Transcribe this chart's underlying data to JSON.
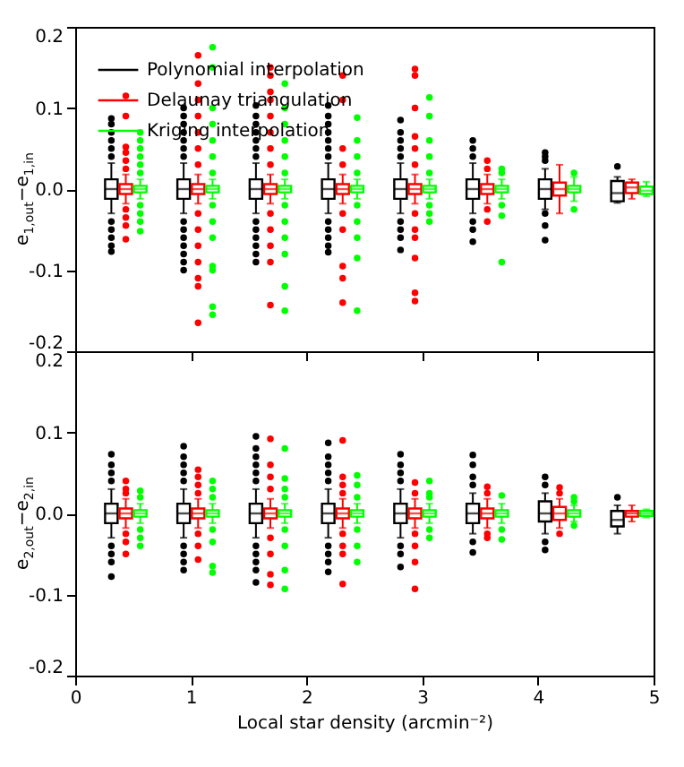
{
  "chart_data": [
    {
      "type": "box",
      "ylabel": "e$_{1,out}$−e$_{1,in}$",
      "xlim": [
        0,
        5
      ],
      "xticks": [
        0,
        1,
        2,
        3,
        4,
        5
      ],
      "ylim": [
        -0.2,
        0.2
      ],
      "yticks": [
        {
          "value": -0.2,
          "label": "-0.2"
        },
        {
          "value": -0.1,
          "label": "-0.1"
        },
        {
          "value": 0,
          "label": "0.0"
        },
        {
          "value": 0.1,
          "label": "0.1"
        },
        {
          "value": 0.2,
          "label": "0.2"
        }
      ],
      "tick_labels": "y",
      "legend": "top left",
      "marker": "circle",
      "x": [
        0.4375,
        1.0625,
        1.6875,
        2.3125,
        2.9375,
        3.5625,
        4.1875,
        4.8125
      ],
      "series": [
        {
          "name": "Polynomial interpolation",
          "color": "#000000",
          "boxes": [
            {
              "low": -0.03,
              "q1": -0.012,
              "median": 0,
              "q3": 0.012,
              "high": 0.032,
              "outliers": [
                0.04,
                0.05,
                0.06,
                0.07,
                0.08,
                0.087,
                -0.04,
                -0.05,
                -0.06,
                -0.07,
                -0.077
              ]
            },
            {
              "low": -0.03,
              "q1": -0.012,
              "median": 0,
              "q3": 0.012,
              "high": 0.032,
              "outliers": [
                0.04,
                0.05,
                0.06,
                0.07,
                0.08,
                0.09,
                0.1,
                -0.04,
                -0.05,
                -0.06,
                -0.07,
                -0.08,
                -0.09,
                -0.1
              ]
            },
            {
              "low": -0.03,
              "q1": -0.012,
              "median": 0,
              "q3": 0.012,
              "high": 0.032,
              "outliers": [
                0.04,
                0.05,
                0.06,
                0.07,
                0.08,
                0.09,
                0.103,
                -0.04,
                -0.05,
                -0.06,
                -0.07,
                -0.08,
                -0.09
              ]
            },
            {
              "low": -0.03,
              "q1": -0.012,
              "median": 0,
              "q3": 0.012,
              "high": 0.032,
              "outliers": [
                0.04,
                0.05,
                0.06,
                0.07,
                0.08,
                0.09,
                0.103,
                -0.04,
                -0.05,
                -0.06,
                -0.07,
                -0.078
              ]
            },
            {
              "low": -0.03,
              "q1": -0.012,
              "median": 0,
              "q3": 0.012,
              "high": 0.032,
              "outliers": [
                0.04,
                0.05,
                0.06,
                0.07,
                0.085,
                -0.04,
                -0.05,
                -0.06,
                -0.075
              ]
            },
            {
              "low": -0.03,
              "q1": -0.012,
              "median": 0,
              "q3": 0.012,
              "high": 0.032,
              "outliers": [
                0.04,
                0.05,
                0.06,
                -0.04,
                -0.05,
                -0.065
              ]
            },
            {
              "low": -0.025,
              "q1": -0.012,
              "median": 0,
              "q3": 0.012,
              "high": 0.025,
              "outliers": [
                0.035,
                0.04,
                0.045,
                -0.03,
                -0.045,
                -0.063
              ]
            },
            {
              "low": -0.017,
              "q1": -0.015,
              "median": -0.005,
              "q3": 0.01,
              "high": 0.015,
              "outliers": [
                0.028
              ]
            }
          ]
        },
        {
          "name": "Delaunay triangulation",
          "color": "#ff0000",
          "boxes": [
            {
              "low": -0.018,
              "q1": -0.006,
              "median": 0,
              "q3": 0.006,
              "high": 0.018,
              "outliers": [
                0.025,
                0.035,
                0.045,
                0.052,
                0.09,
                0.115,
                -0.025,
                -0.035,
                -0.045,
                -0.062
              ]
            },
            {
              "low": -0.018,
              "q1": -0.006,
              "median": 0,
              "q3": 0.006,
              "high": 0.018,
              "outliers": [
                0.03,
                0.05,
                0.07,
                0.09,
                0.11,
                0.13,
                0.165,
                -0.03,
                -0.05,
                -0.07,
                -0.09,
                -0.11,
                -0.12,
                -0.165
              ]
            },
            {
              "low": -0.018,
              "q1": -0.006,
              "median": 0,
              "q3": 0.006,
              "high": 0.018,
              "outliers": [
                0.03,
                0.05,
                0.07,
                0.09,
                0.11,
                0.12,
                0.14,
                0.15,
                -0.03,
                -0.05,
                -0.07,
                -0.09,
                -0.143
              ]
            },
            {
              "low": -0.018,
              "q1": -0.006,
              "median": 0,
              "q3": 0.006,
              "high": 0.018,
              "outliers": [
                0.03,
                0.05,
                0.11,
                0.14,
                -0.03,
                -0.05,
                -0.095,
                -0.11,
                -0.14
              ]
            },
            {
              "low": -0.018,
              "q1": -0.006,
              "median": 0,
              "q3": 0.006,
              "high": 0.018,
              "outliers": [
                0.03,
                0.05,
                0.065,
                0.1,
                0.14,
                0.148,
                -0.03,
                -0.05,
                -0.06,
                -0.085,
                -0.128,
                -0.138
              ]
            },
            {
              "low": -0.018,
              "q1": -0.006,
              "median": 0,
              "q3": 0.006,
              "high": 0.018,
              "outliers": [
                0.025,
                0.035,
                -0.025,
                -0.04
              ]
            },
            {
              "low": -0.03,
              "q1": -0.008,
              "median": 0,
              "q3": 0.008,
              "high": 0.03
            },
            {
              "low": -0.012,
              "q1": -0.005,
              "median": 0.002,
              "q3": 0.008,
              "high": 0.012
            }
          ]
        },
        {
          "name": "Kriging interpolation",
          "color": "#00ff00",
          "boxes": [
            {
              "low": -0.012,
              "q1": -0.004,
              "median": 0,
              "q3": 0.004,
              "high": 0.012,
              "outliers": [
                0.02,
                0.03,
                0.04,
                0.05,
                0.06,
                0.07,
                -0.02,
                -0.03,
                -0.04,
                -0.052
              ]
            },
            {
              "low": -0.012,
              "q1": -0.004,
              "median": 0,
              "q3": 0.004,
              "high": 0.012,
              "outliers": [
                0.02,
                0.04,
                0.06,
                0.08,
                0.1,
                0.15,
                0.175,
                -0.02,
                -0.04,
                -0.06,
                -0.095,
                -0.1,
                -0.145,
                -0.155
              ]
            },
            {
              "low": -0.012,
              "q1": -0.004,
              "median": 0,
              "q3": 0.004,
              "high": 0.012,
              "outliers": [
                0.02,
                0.04,
                0.06,
                0.08,
                0.1,
                0.13,
                -0.02,
                -0.04,
                -0.06,
                -0.08,
                -0.12,
                -0.15
              ]
            },
            {
              "low": -0.012,
              "q1": -0.004,
              "median": 0,
              "q3": 0.004,
              "high": 0.012,
              "outliers": [
                0.02,
                0.04,
                0.06,
                0.088,
                -0.02,
                -0.04,
                -0.06,
                -0.085,
                -0.15
              ]
            },
            {
              "low": -0.012,
              "q1": -0.004,
              "median": 0,
              "q3": 0.004,
              "high": 0.012,
              "outliers": [
                0.02,
                0.04,
                0.06,
                0.09,
                0.113,
                -0.02,
                -0.03,
                -0.04
              ]
            },
            {
              "low": -0.012,
              "q1": -0.004,
              "median": 0,
              "q3": 0.004,
              "high": 0.012,
              "outliers": [
                0.02,
                0.025,
                -0.02,
                -0.033,
                -0.09
              ]
            },
            {
              "low": -0.015,
              "q1": -0.004,
              "median": 0,
              "q3": 0.004,
              "high": 0.015,
              "outliers": [
                0.02,
                -0.025
              ]
            },
            {
              "low": -0.009,
              "q1": -0.006,
              "median": -0.002,
              "q3": 0.003,
              "high": 0.009
            }
          ]
        }
      ]
    },
    {
      "type": "box",
      "xlabel": "Local star density (arcmin⁻²)",
      "ylabel": "e$_{2,out}$−e$_{2,in}$",
      "xlim": [
        0,
        5
      ],
      "xticks": [
        0,
        1,
        2,
        3,
        4,
        5
      ],
      "ylim": [
        -0.2,
        0.2
      ],
      "yticks": [
        {
          "value": -0.2,
          "label": "-0.2"
        },
        {
          "value": -0.1,
          "label": "-0.1"
        },
        {
          "value": 0,
          "label": "0.0"
        },
        {
          "value": 0.1,
          "label": "0.1"
        },
        {
          "value": 0.2,
          "label": "0.2"
        }
      ],
      "marker": "circle",
      "x": [
        0.4375,
        1.0625,
        1.6875,
        2.3125,
        2.9375,
        3.5625,
        4.1875,
        4.8125
      ],
      "series": [
        {
          "color": "#000000",
          "boxes": [
            {
              "low": -0.03,
              "q1": -0.012,
              "median": 0,
              "q3": 0.012,
              "high": 0.03,
              "outliers": [
                0.04,
                0.05,
                0.06,
                0.073,
                -0.04,
                -0.05,
                -0.06,
                -0.078
              ]
            },
            {
              "low": -0.03,
              "q1": -0.012,
              "median": 0,
              "q3": 0.012,
              "high": 0.03,
              "outliers": [
                0.04,
                0.05,
                0.06,
                0.07,
                0.083,
                -0.04,
                -0.05,
                -0.06,
                -0.07
              ]
            },
            {
              "low": -0.03,
              "q1": -0.012,
              "median": 0,
              "q3": 0.012,
              "high": 0.03,
              "outliers": [
                0.04,
                0.05,
                0.06,
                0.07,
                0.08,
                0.095,
                -0.04,
                -0.05,
                -0.06,
                -0.07,
                -0.085
              ]
            },
            {
              "low": -0.03,
              "q1": -0.012,
              "median": 0,
              "q3": 0.012,
              "high": 0.03,
              "outliers": [
                0.04,
                0.05,
                0.06,
                0.07,
                0.087,
                -0.04,
                -0.05,
                -0.06,
                -0.072
              ]
            },
            {
              "low": -0.03,
              "q1": -0.012,
              "median": 0,
              "q3": 0.012,
              "high": 0.03,
              "outliers": [
                0.04,
                0.05,
                0.06,
                0.073,
                -0.04,
                -0.05,
                -0.066
              ]
            },
            {
              "low": -0.025,
              "q1": -0.012,
              "median": 0,
              "q3": 0.012,
              "high": 0.025,
              "outliers": [
                0.035,
                0.045,
                0.06,
                0.072,
                -0.035,
                -0.048
              ]
            },
            {
              "low": -0.025,
              "q1": -0.01,
              "median": 0,
              "q3": 0.015,
              "high": 0.025,
              "outliers": [
                0.035,
                0.045,
                -0.035,
                -0.045
              ]
            },
            {
              "low": -0.025,
              "q1": -0.016,
              "median": -0.008,
              "q3": 0.003,
              "high": 0.01,
              "outliers": [
                0.02
              ]
            }
          ]
        },
        {
          "color": "#ff0000",
          "boxes": [
            {
              "low": -0.018,
              "q1": -0.006,
              "median": 0,
              "q3": 0.006,
              "high": 0.018,
              "outliers": [
                0.025,
                0.03,
                0.04,
                -0.025,
                -0.035,
                -0.05
              ]
            },
            {
              "low": -0.018,
              "q1": -0.006,
              "median": 0,
              "q3": 0.006,
              "high": 0.018,
              "outliers": [
                0.025,
                0.035,
                0.045,
                0.054,
                -0.025,
                -0.04,
                -0.057
              ]
            },
            {
              "low": -0.018,
              "q1": -0.006,
              "median": 0,
              "q3": 0.006,
              "high": 0.018,
              "outliers": [
                0.03,
                0.045,
                0.06,
                0.092,
                -0.03,
                -0.05,
                -0.075,
                -0.088
              ]
            },
            {
              "low": -0.018,
              "q1": -0.006,
              "median": 0,
              "q3": 0.006,
              "high": 0.018,
              "outliers": [
                0.025,
                0.035,
                0.045,
                0.09,
                -0.025,
                -0.04,
                -0.05,
                -0.087
              ]
            },
            {
              "low": -0.018,
              "q1": -0.006,
              "median": 0,
              "q3": 0.006,
              "high": 0.018,
              "outliers": [
                0.025,
                0.038,
                -0.025,
                -0.04,
                -0.06,
                -0.093
              ]
            },
            {
              "low": -0.018,
              "q1": -0.006,
              "median": 0,
              "q3": 0.006,
              "high": 0.018,
              "outliers": [
                0.025,
                0.033,
                -0.025,
                -0.03
              ]
            },
            {
              "low": -0.018,
              "q1": -0.008,
              "median": 0,
              "q3": 0.008,
              "high": 0.018,
              "outliers": [
                0.025,
                0.032,
                -0.025
              ]
            },
            {
              "low": -0.01,
              "q1": -0.004,
              "median": 0,
              "q3": 0.003,
              "high": 0.01
            }
          ]
        },
        {
          "color": "#00ff00",
          "boxes": [
            {
              "low": -0.012,
              "q1": -0.004,
              "median": 0,
              "q3": 0.004,
              "high": 0.012,
              "outliers": [
                0.02,
                0.028,
                -0.02,
                -0.03,
                -0.04
              ]
            },
            {
              "low": -0.012,
              "q1": -0.004,
              "median": 0,
              "q3": 0.004,
              "high": 0.012,
              "outliers": [
                0.02,
                0.03,
                0.04,
                -0.02,
                -0.035,
                -0.065,
                -0.073
              ]
            },
            {
              "low": -0.012,
              "q1": -0.004,
              "median": 0,
              "q3": 0.004,
              "high": 0.012,
              "outliers": [
                0.02,
                0.03,
                0.043,
                0.08,
                -0.02,
                -0.04,
                -0.07,
                -0.093
              ]
            },
            {
              "low": -0.012,
              "q1": -0.004,
              "median": 0,
              "q3": 0.004,
              "high": 0.012,
              "outliers": [
                0.02,
                0.035,
                0.047,
                -0.02,
                -0.04,
                -0.06
              ]
            },
            {
              "low": -0.012,
              "q1": -0.004,
              "median": 0,
              "q3": 0.004,
              "high": 0.012,
              "outliers": [
                0.02,
                0.025,
                0.04,
                -0.02,
                -0.03
              ]
            },
            {
              "low": -0.012,
              "q1": -0.004,
              "median": 0,
              "q3": 0.004,
              "high": 0.012,
              "outliers": [
                0.022,
                -0.02,
                -0.032
              ]
            },
            {
              "low": -0.01,
              "q1": -0.004,
              "median": 0,
              "q3": 0.004,
              "high": 0.01,
              "outliers": [
                0.015,
                0.02,
                -0.015
              ]
            },
            {
              "low": -0.005,
              "q1": -0.003,
              "median": 0,
              "q3": 0.003,
              "high": 0.005
            }
          ]
        }
      ]
    }
  ]
}
